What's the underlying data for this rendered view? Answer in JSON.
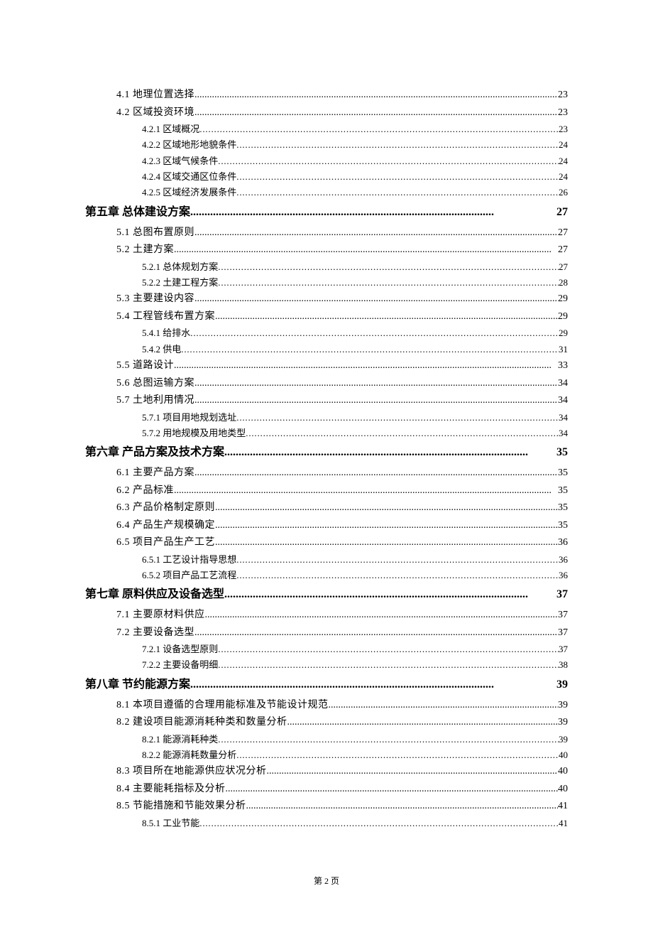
{
  "footer": "第 2 页",
  "entries": [
    {
      "level": 1,
      "title": "4.1 地理位置选择",
      "page": "23"
    },
    {
      "level": 1,
      "title": "4.2 区域投资环境",
      "page": "23"
    },
    {
      "level": 2,
      "title": "4.2.1 区域概况",
      "page": "23"
    },
    {
      "level": 2,
      "title": "4.2.2 区域地形地貌条件",
      "page": "24"
    },
    {
      "level": 2,
      "title": "4.2.3 区域气候条件",
      "page": "24"
    },
    {
      "level": 2,
      "title": "4.2.4 区域交通区位条件",
      "page": "24"
    },
    {
      "level": 2,
      "title": "4.2.5 区域经济发展条件",
      "page": "26"
    },
    {
      "level": 0,
      "title": "第五章 总体建设方案",
      "page": "27"
    },
    {
      "level": 1,
      "title": "5.1 总图布置原则",
      "page": "27"
    },
    {
      "level": 1,
      "title": "5.2 土建方案",
      "page": "27"
    },
    {
      "level": 2,
      "title": "5.2.1 总体规划方案",
      "page": "27"
    },
    {
      "level": 2,
      "title": "5.2.2 土建工程方案",
      "page": "28"
    },
    {
      "level": 1,
      "title": "5.3 主要建设内容",
      "page": "29"
    },
    {
      "level": 1,
      "title": "5.4 工程管线布置方案",
      "page": "29"
    },
    {
      "level": 2,
      "title": "5.4.1 给排水",
      "page": "29"
    },
    {
      "level": 2,
      "title": "5.4.2 供电",
      "page": "31"
    },
    {
      "level": 1,
      "title": "5.5 道路设计",
      "page": "33"
    },
    {
      "level": 1,
      "title": "5.6 总图运输方案",
      "page": "34"
    },
    {
      "level": 1,
      "title": "5.7 土地利用情况",
      "page": "34"
    },
    {
      "level": 2,
      "title": "5.7.1 项目用地规划选址",
      "page": "34"
    },
    {
      "level": 2,
      "title": "5.7.2 用地规模及用地类型",
      "page": "34"
    },
    {
      "level": 0,
      "title": "第六章 产品方案及技术方案",
      "page": "35"
    },
    {
      "level": 1,
      "title": "6.1 主要产品方案",
      "page": "35"
    },
    {
      "level": 1,
      "title": "6.2 产品标准",
      "page": "35"
    },
    {
      "level": 1,
      "title": "6.3 产品价格制定原则",
      "page": "35"
    },
    {
      "level": 1,
      "title": "6.4 产品生产规模确定",
      "page": "35"
    },
    {
      "level": 1,
      "title": "6.5 项目产品生产工艺",
      "page": "36"
    },
    {
      "level": 2,
      "title": "6.5.1 工艺设计指导思想",
      "page": "36"
    },
    {
      "level": 2,
      "title": "6.5.2 项目产品工艺流程",
      "page": "36"
    },
    {
      "level": 0,
      "title": "第七章 原料供应及设备选型",
      "page": "37"
    },
    {
      "level": 1,
      "title": "7.1 主要原材料供应",
      "page": "37"
    },
    {
      "level": 1,
      "title": "7.2 主要设备选型",
      "page": "37"
    },
    {
      "level": 2,
      "title": "7.2.1 设备选型原则",
      "page": "37"
    },
    {
      "level": 2,
      "title": "7.2.2 主要设备明细",
      "page": "38"
    },
    {
      "level": 0,
      "title": "第八章 节约能源方案",
      "page": "39"
    },
    {
      "level": 1,
      "title": "8.1 本项目遵循的合理用能标准及节能设计规范",
      "page": "39"
    },
    {
      "level": 1,
      "title": "8.2 建设项目能源消耗种类和数量分析",
      "page": "39"
    },
    {
      "level": 2,
      "title": "8.2.1 能源消耗种类",
      "page": "39"
    },
    {
      "level": 2,
      "title": "8.2.2 能源消耗数量分析",
      "page": "40"
    },
    {
      "level": 1,
      "title": "8.3 项目所在地能源供应状况分析",
      "page": "40"
    },
    {
      "level": 1,
      "title": "8.4 主要能耗指标及分析",
      "page": "40"
    },
    {
      "level": 1,
      "title": "8.5 节能措施和节能效果分析",
      "page": "41"
    },
    {
      "level": 2,
      "title": "8.5.1 工业节能",
      "page": "41"
    }
  ]
}
